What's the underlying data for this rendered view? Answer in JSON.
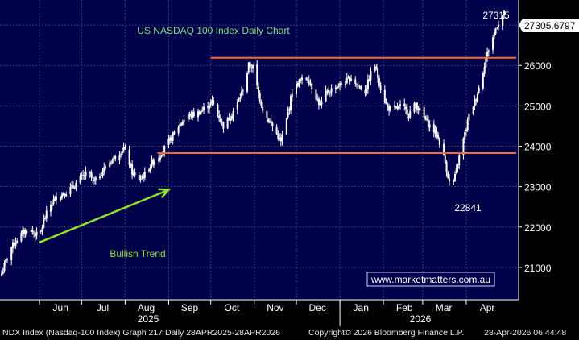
{
  "colors": {
    "plot_bg": "#00004a",
    "grid": "#3a3a78",
    "candle": "#ffffff",
    "resistance_line": "#ff6a2a",
    "trend_arrow": "#8fe02a",
    "title": "#7de07d",
    "watermark_border": "#cfd6ff",
    "last_price_box": "#ffffff"
  },
  "footer": {
    "left": "NDX Index (Nasdaq-100 Index) Graph 217 Daily 28APR2025-28APR2026",
    "middle": "Copyright© 2026 Bloomberg Finance L.P.",
    "right": "28-Apr-2026 06:44:48"
  },
  "chart_data": {
    "type": "candlestick",
    "title": "US NASDAQ 100 Index Daily Chart",
    "watermark": "www.marketmatters.com.au",
    "x_month_labels": [
      "Jun",
      "Jul",
      "Aug",
      "Sep",
      "Oct",
      "Nov",
      "Dec",
      "Jan",
      "Feb",
      "Mar",
      "Apr"
    ],
    "x_year_labels": [
      "2025",
      "2026"
    ],
    "y_ticks": [
      21000,
      22000,
      23000,
      24000,
      25000,
      26000,
      27000
    ],
    "ylim": [
      20200,
      27620
    ],
    "last_price": "27305.6797",
    "annotations": {
      "high_label": "27315",
      "low_label": "22841",
      "trend_label": "Bullish Trend"
    },
    "horizontal_lines": [
      {
        "value": 26190,
        "from_date": "2025-10-01",
        "to_date": "2026-04-28"
      },
      {
        "value": 23830,
        "from_date": "2025-08-24",
        "to_date": "2026-04-28"
      }
    ],
    "trend_arrow": {
      "from": [
        "2025-06-01",
        21620
      ],
      "to": [
        "2025-09-01",
        22920
      ]
    },
    "x_date_range": [
      "2025-05-05",
      "2026-04-28"
    ],
    "series_anchors": [
      [
        "2025-05-05",
        20850
      ],
      [
        "2025-05-08",
        21150
      ],
      [
        "2025-05-12",
        21500
      ],
      [
        "2025-05-16",
        21700
      ],
      [
        "2025-05-20",
        21850
      ],
      [
        "2025-05-24",
        21950
      ],
      [
        "2025-05-28",
        21850
      ],
      [
        "2025-06-01",
        21750
      ],
      [
        "2025-06-04",
        22150
      ],
      [
        "2025-06-08",
        22500
      ],
      [
        "2025-06-13",
        22750
      ],
      [
        "2025-06-19",
        22850
      ],
      [
        "2025-06-25",
        23000
      ],
      [
        "2025-06-30",
        23200
      ],
      [
        "2025-07-06",
        23350
      ],
      [
        "2025-07-10",
        23100
      ],
      [
        "2025-07-16",
        23400
      ],
      [
        "2025-07-22",
        23650
      ],
      [
        "2025-07-28",
        23850
      ],
      [
        "2025-07-31",
        23950
      ],
      [
        "2025-08-03",
        23700
      ],
      [
        "2025-08-06",
        23350
      ],
      [
        "2025-08-10",
        23150
      ],
      [
        "2025-08-15",
        23300
      ],
      [
        "2025-08-20",
        23600
      ],
      [
        "2025-08-24",
        23700
      ],
      [
        "2025-08-28",
        23900
      ],
      [
        "2025-09-03",
        24200
      ],
      [
        "2025-09-08",
        24500
      ],
      [
        "2025-09-14",
        24750
      ],
      [
        "2025-09-21",
        24800
      ],
      [
        "2025-09-27",
        24950
      ],
      [
        "2025-10-02",
        25100
      ],
      [
        "2025-10-06",
        24800
      ],
      [
        "2025-10-10",
        24500
      ],
      [
        "2025-10-16",
        24800
      ],
      [
        "2025-10-21",
        25150
      ],
      [
        "2025-10-25",
        25500
      ],
      [
        "2025-10-28",
        26000
      ],
      [
        "2025-10-31",
        25950
      ],
      [
        "2025-11-04",
        25300
      ],
      [
        "2025-11-08",
        24800
      ],
      [
        "2025-11-13",
        24550
      ],
      [
        "2025-11-17",
        24300
      ],
      [
        "2025-11-20",
        24100
      ],
      [
        "2025-11-24",
        24650
      ],
      [
        "2025-11-28",
        25350
      ],
      [
        "2025-12-03",
        25600
      ],
      [
        "2025-12-09",
        25700
      ],
      [
        "2025-12-14",
        25300
      ],
      [
        "2025-12-18",
        25000
      ],
      [
        "2025-12-22",
        25300
      ],
      [
        "2025-12-28",
        25450
      ],
      [
        "2026-01-03",
        25550
      ],
      [
        "2026-01-09",
        25700
      ],
      [
        "2026-01-14",
        25500
      ],
      [
        "2026-01-19",
        25350
      ],
      [
        "2026-01-23",
        25800
      ],
      [
        "2026-01-26",
        26000
      ],
      [
        "2026-01-31",
        25300
      ],
      [
        "2026-02-04",
        24950
      ],
      [
        "2026-02-09",
        24900
      ],
      [
        "2026-02-14",
        25000
      ],
      [
        "2026-02-19",
        24800
      ],
      [
        "2026-02-24",
        25050
      ],
      [
        "2026-03-01",
        24750
      ],
      [
        "2026-03-06",
        24500
      ],
      [
        "2026-03-11",
        24300
      ],
      [
        "2026-03-14",
        24000
      ],
      [
        "2026-03-17",
        23600
      ],
      [
        "2026-03-20",
        23100
      ],
      [
        "2026-03-22",
        22950
      ],
      [
        "2026-03-25",
        23400
      ],
      [
        "2026-03-28",
        23900
      ],
      [
        "2026-03-31",
        24300
      ],
      [
        "2026-04-03",
        24750
      ],
      [
        "2026-04-08",
        25200
      ],
      [
        "2026-04-12",
        25700
      ],
      [
        "2026-04-15",
        26200
      ],
      [
        "2026-04-19",
        26600
      ],
      [
        "2026-04-23",
        27000
      ],
      [
        "2026-04-28",
        27280
      ]
    ]
  }
}
